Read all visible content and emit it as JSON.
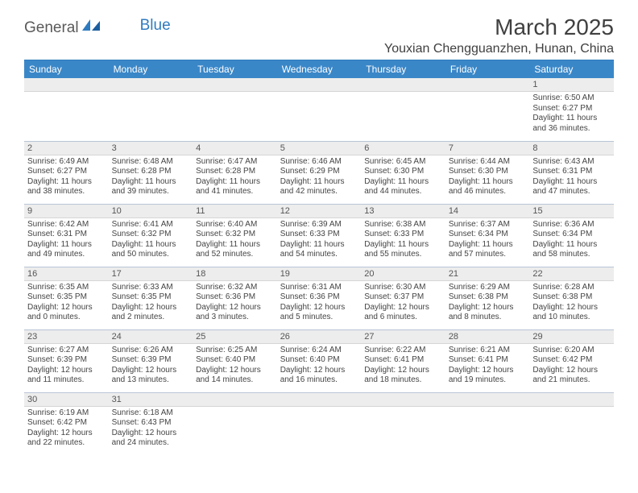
{
  "logo": {
    "text1": "General",
    "text2": "Blue"
  },
  "title": "March 2025",
  "location": "Youxian Chengguanzhen, Hunan, China",
  "weekdays": [
    "Sunday",
    "Monday",
    "Tuesday",
    "Wednesday",
    "Thursday",
    "Friday",
    "Saturday"
  ],
  "colors": {
    "header_bg": "#3a87c8",
    "header_fg": "#ffffff",
    "rule": "#2f7bbf",
    "daynum_bg": "#ededed",
    "text": "#444444"
  },
  "fonts": {
    "title_size_pt": 28,
    "location_size_pt": 16,
    "header_size_pt": 12,
    "body_size_pt": 10
  },
  "weeks": [
    [
      {
        "n": "",
        "sr": "",
        "ss": "",
        "dl": ""
      },
      {
        "n": "",
        "sr": "",
        "ss": "",
        "dl": ""
      },
      {
        "n": "",
        "sr": "",
        "ss": "",
        "dl": ""
      },
      {
        "n": "",
        "sr": "",
        "ss": "",
        "dl": ""
      },
      {
        "n": "",
        "sr": "",
        "ss": "",
        "dl": ""
      },
      {
        "n": "",
        "sr": "",
        "ss": "",
        "dl": ""
      },
      {
        "n": "1",
        "sr": "Sunrise: 6:50 AM",
        "ss": "Sunset: 6:27 PM",
        "dl": "Daylight: 11 hours and 36 minutes."
      }
    ],
    [
      {
        "n": "2",
        "sr": "Sunrise: 6:49 AM",
        "ss": "Sunset: 6:27 PM",
        "dl": "Daylight: 11 hours and 38 minutes."
      },
      {
        "n": "3",
        "sr": "Sunrise: 6:48 AM",
        "ss": "Sunset: 6:28 PM",
        "dl": "Daylight: 11 hours and 39 minutes."
      },
      {
        "n": "4",
        "sr": "Sunrise: 6:47 AM",
        "ss": "Sunset: 6:28 PM",
        "dl": "Daylight: 11 hours and 41 minutes."
      },
      {
        "n": "5",
        "sr": "Sunrise: 6:46 AM",
        "ss": "Sunset: 6:29 PM",
        "dl": "Daylight: 11 hours and 42 minutes."
      },
      {
        "n": "6",
        "sr": "Sunrise: 6:45 AM",
        "ss": "Sunset: 6:30 PM",
        "dl": "Daylight: 11 hours and 44 minutes."
      },
      {
        "n": "7",
        "sr": "Sunrise: 6:44 AM",
        "ss": "Sunset: 6:30 PM",
        "dl": "Daylight: 11 hours and 46 minutes."
      },
      {
        "n": "8",
        "sr": "Sunrise: 6:43 AM",
        "ss": "Sunset: 6:31 PM",
        "dl": "Daylight: 11 hours and 47 minutes."
      }
    ],
    [
      {
        "n": "9",
        "sr": "Sunrise: 6:42 AM",
        "ss": "Sunset: 6:31 PM",
        "dl": "Daylight: 11 hours and 49 minutes."
      },
      {
        "n": "10",
        "sr": "Sunrise: 6:41 AM",
        "ss": "Sunset: 6:32 PM",
        "dl": "Daylight: 11 hours and 50 minutes."
      },
      {
        "n": "11",
        "sr": "Sunrise: 6:40 AM",
        "ss": "Sunset: 6:32 PM",
        "dl": "Daylight: 11 hours and 52 minutes."
      },
      {
        "n": "12",
        "sr": "Sunrise: 6:39 AM",
        "ss": "Sunset: 6:33 PM",
        "dl": "Daylight: 11 hours and 54 minutes."
      },
      {
        "n": "13",
        "sr": "Sunrise: 6:38 AM",
        "ss": "Sunset: 6:33 PM",
        "dl": "Daylight: 11 hours and 55 minutes."
      },
      {
        "n": "14",
        "sr": "Sunrise: 6:37 AM",
        "ss": "Sunset: 6:34 PM",
        "dl": "Daylight: 11 hours and 57 minutes."
      },
      {
        "n": "15",
        "sr": "Sunrise: 6:36 AM",
        "ss": "Sunset: 6:34 PM",
        "dl": "Daylight: 11 hours and 58 minutes."
      }
    ],
    [
      {
        "n": "16",
        "sr": "Sunrise: 6:35 AM",
        "ss": "Sunset: 6:35 PM",
        "dl": "Daylight: 12 hours and 0 minutes."
      },
      {
        "n": "17",
        "sr": "Sunrise: 6:33 AM",
        "ss": "Sunset: 6:35 PM",
        "dl": "Daylight: 12 hours and 2 minutes."
      },
      {
        "n": "18",
        "sr": "Sunrise: 6:32 AM",
        "ss": "Sunset: 6:36 PM",
        "dl": "Daylight: 12 hours and 3 minutes."
      },
      {
        "n": "19",
        "sr": "Sunrise: 6:31 AM",
        "ss": "Sunset: 6:36 PM",
        "dl": "Daylight: 12 hours and 5 minutes."
      },
      {
        "n": "20",
        "sr": "Sunrise: 6:30 AM",
        "ss": "Sunset: 6:37 PM",
        "dl": "Daylight: 12 hours and 6 minutes."
      },
      {
        "n": "21",
        "sr": "Sunrise: 6:29 AM",
        "ss": "Sunset: 6:38 PM",
        "dl": "Daylight: 12 hours and 8 minutes."
      },
      {
        "n": "22",
        "sr": "Sunrise: 6:28 AM",
        "ss": "Sunset: 6:38 PM",
        "dl": "Daylight: 12 hours and 10 minutes."
      }
    ],
    [
      {
        "n": "23",
        "sr": "Sunrise: 6:27 AM",
        "ss": "Sunset: 6:39 PM",
        "dl": "Daylight: 12 hours and 11 minutes."
      },
      {
        "n": "24",
        "sr": "Sunrise: 6:26 AM",
        "ss": "Sunset: 6:39 PM",
        "dl": "Daylight: 12 hours and 13 minutes."
      },
      {
        "n": "25",
        "sr": "Sunrise: 6:25 AM",
        "ss": "Sunset: 6:40 PM",
        "dl": "Daylight: 12 hours and 14 minutes."
      },
      {
        "n": "26",
        "sr": "Sunrise: 6:24 AM",
        "ss": "Sunset: 6:40 PM",
        "dl": "Daylight: 12 hours and 16 minutes."
      },
      {
        "n": "27",
        "sr": "Sunrise: 6:22 AM",
        "ss": "Sunset: 6:41 PM",
        "dl": "Daylight: 12 hours and 18 minutes."
      },
      {
        "n": "28",
        "sr": "Sunrise: 6:21 AM",
        "ss": "Sunset: 6:41 PM",
        "dl": "Daylight: 12 hours and 19 minutes."
      },
      {
        "n": "29",
        "sr": "Sunrise: 6:20 AM",
        "ss": "Sunset: 6:42 PM",
        "dl": "Daylight: 12 hours and 21 minutes."
      }
    ],
    [
      {
        "n": "30",
        "sr": "Sunrise: 6:19 AM",
        "ss": "Sunset: 6:42 PM",
        "dl": "Daylight: 12 hours and 22 minutes."
      },
      {
        "n": "31",
        "sr": "Sunrise: 6:18 AM",
        "ss": "Sunset: 6:43 PM",
        "dl": "Daylight: 12 hours and 24 minutes."
      },
      {
        "n": "",
        "sr": "",
        "ss": "",
        "dl": ""
      },
      {
        "n": "",
        "sr": "",
        "ss": "",
        "dl": ""
      },
      {
        "n": "",
        "sr": "",
        "ss": "",
        "dl": ""
      },
      {
        "n": "",
        "sr": "",
        "ss": "",
        "dl": ""
      },
      {
        "n": "",
        "sr": "",
        "ss": "",
        "dl": ""
      }
    ]
  ]
}
